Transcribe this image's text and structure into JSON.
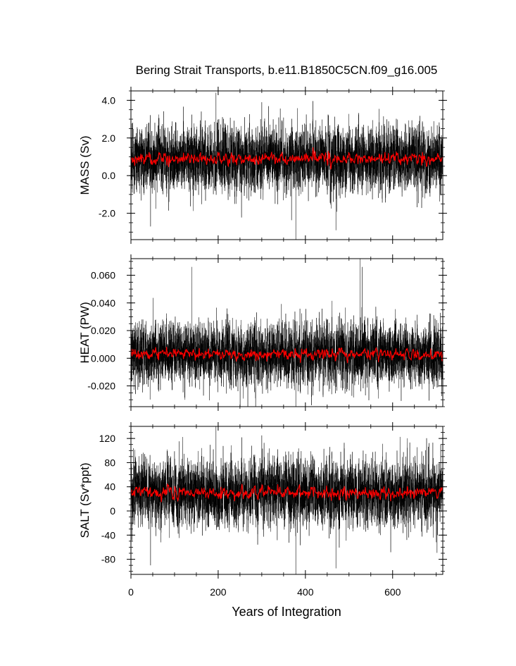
{
  "title": "Bering Strait Transports, b.e11.B1850C5CN.f09_g16.005",
  "xlabel": "Years of Integration",
  "chart_data": [
    {
      "type": "line",
      "name_hint": "mass",
      "ylabel": "MASS (Sv)",
      "ylim": [
        -3.4,
        4.5
      ],
      "yticks": [
        4.0,
        2.0,
        0.0,
        -2.0
      ],
      "yticklabels": [
        "4.0",
        "2.0",
        "0.0",
        "-2.0"
      ],
      "xlim": [
        0,
        715
      ],
      "xticks": [
        0,
        200,
        400,
        600
      ],
      "xticklabels": [
        "0",
        "200",
        "400",
        "600"
      ],
      "center": 0.9,
      "noise_sd": 0.85,
      "smooth_sd": 0.12,
      "spikes": [
        [
          195,
          4.4
        ],
        [
          378,
          -3.4
        ],
        [
          300,
          3.9
        ],
        [
          45,
          -2.7
        ],
        [
          470,
          -2.9
        ]
      ],
      "series": [
        {
          "name": "",
          "description_of_values": "monthly transport",
          "color": "#000000",
          "x_range": [
            0,
            715
          ],
          "approx_mean": 0.9,
          "approx_min": -3.4,
          "approx_max": 4.4
        },
        {
          "name": "",
          "description_of_values": "annual mean",
          "color": "#ff0000",
          "x_range": [
            0,
            715
          ],
          "approx_mean": 0.9,
          "approx_min": 0.2,
          "approx_max": 1.4
        }
      ]
    },
    {
      "type": "line",
      "name_hint": "heat",
      "ylabel": "HEAT (PW)",
      "ylim": [
        -0.035,
        0.072
      ],
      "yticks": [
        0.06,
        0.04,
        0.02,
        0.0,
        -0.02
      ],
      "yticklabels": [
        "0.060",
        "0.040",
        "0.020",
        "0.000",
        "-0.020"
      ],
      "xlim": [
        0,
        715
      ],
      "xticks": [
        0,
        200,
        400,
        600
      ],
      "xticklabels": [
        "0",
        "200",
        "400",
        "600"
      ],
      "center": 0.003,
      "noise_sd": 0.011,
      "smooth_sd": 0.0015,
      "spikes": [
        [
          525,
          0.072
        ],
        [
          268,
          -0.035
        ],
        [
          378,
          -0.035
        ],
        [
          140,
          0.066
        ],
        [
          530,
          0.066
        ]
      ],
      "series": [
        {
          "name": "",
          "description_of_values": "monthly transport",
          "color": "#000000",
          "x_range": [
            0,
            715
          ],
          "approx_mean": 0.003,
          "approx_min": -0.035,
          "approx_max": 0.072
        },
        {
          "name": "",
          "description_of_values": "annual mean",
          "color": "#ff0000",
          "x_range": [
            0,
            715
          ],
          "approx_mean": 0.003,
          "approx_min": -0.003,
          "approx_max": 0.008
        }
      ]
    },
    {
      "type": "line",
      "name_hint": "salt",
      "ylabel": "SALT (Sv*ppt)",
      "ylim": [
        -105,
        140
      ],
      "yticks": [
        120,
        80,
        40,
        0,
        -40,
        -80
      ],
      "yticklabels": [
        "120",
        "80",
        "40",
        "0",
        "-40",
        "-80"
      ],
      "xlim": [
        0,
        715
      ],
      "xticks": [
        0,
        200,
        400,
        600
      ],
      "xticklabels": [
        "0",
        "200",
        "400",
        "600"
      ],
      "center": 30,
      "noise_sd": 27,
      "smooth_sd": 4,
      "spikes": [
        [
          195,
          140
        ],
        [
          378,
          -105
        ],
        [
          300,
          125
        ],
        [
          45,
          -90
        ],
        [
          470,
          -95
        ]
      ],
      "series": [
        {
          "name": "",
          "description_of_values": "monthly transport",
          "color": "#000000",
          "x_range": [
            0,
            715
          ],
          "approx_mean": 30,
          "approx_min": -105,
          "approx_max": 140
        },
        {
          "name": "",
          "description_of_values": "annual mean",
          "color": "#ff0000",
          "x_range": [
            0,
            715
          ],
          "approx_mean": 30,
          "approx_min": 10,
          "approx_max": 45
        }
      ]
    }
  ]
}
